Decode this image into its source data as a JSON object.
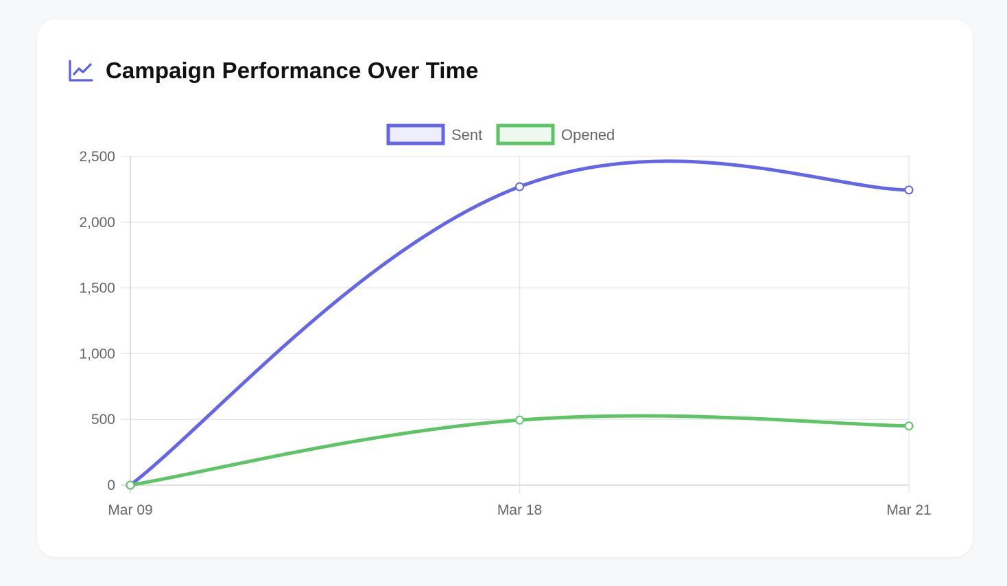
{
  "header": {
    "title": "Campaign Performance Over Time",
    "icon": "line-chart-icon"
  },
  "colors": {
    "accent": "#5b5ee6",
    "sent": "#6366e8",
    "opened": "#5ec566",
    "sent_fill": "#eeeefc",
    "opened_fill": "#eef8ef",
    "grid": "#e5e5e5",
    "text": "#666666"
  },
  "chart_data": {
    "type": "line",
    "categories": [
      "Mar 09",
      "Mar 18",
      "Mar 21"
    ],
    "series": [
      {
        "name": "Sent",
        "values": [
          0,
          2270,
          2245
        ]
      },
      {
        "name": "Opened",
        "values": [
          0,
          495,
          450
        ]
      }
    ],
    "title": "Campaign Performance Over Time",
    "xlabel": "",
    "ylabel": "",
    "ylim": [
      0,
      2500
    ],
    "yticks": [
      "0",
      "500",
      "1,000",
      "1,500",
      "2,000",
      "2,500"
    ],
    "ytick_values": [
      0,
      500,
      1000,
      1500,
      2000,
      2500
    ],
    "grid": true,
    "legend": "top-center",
    "smooth": true
  }
}
